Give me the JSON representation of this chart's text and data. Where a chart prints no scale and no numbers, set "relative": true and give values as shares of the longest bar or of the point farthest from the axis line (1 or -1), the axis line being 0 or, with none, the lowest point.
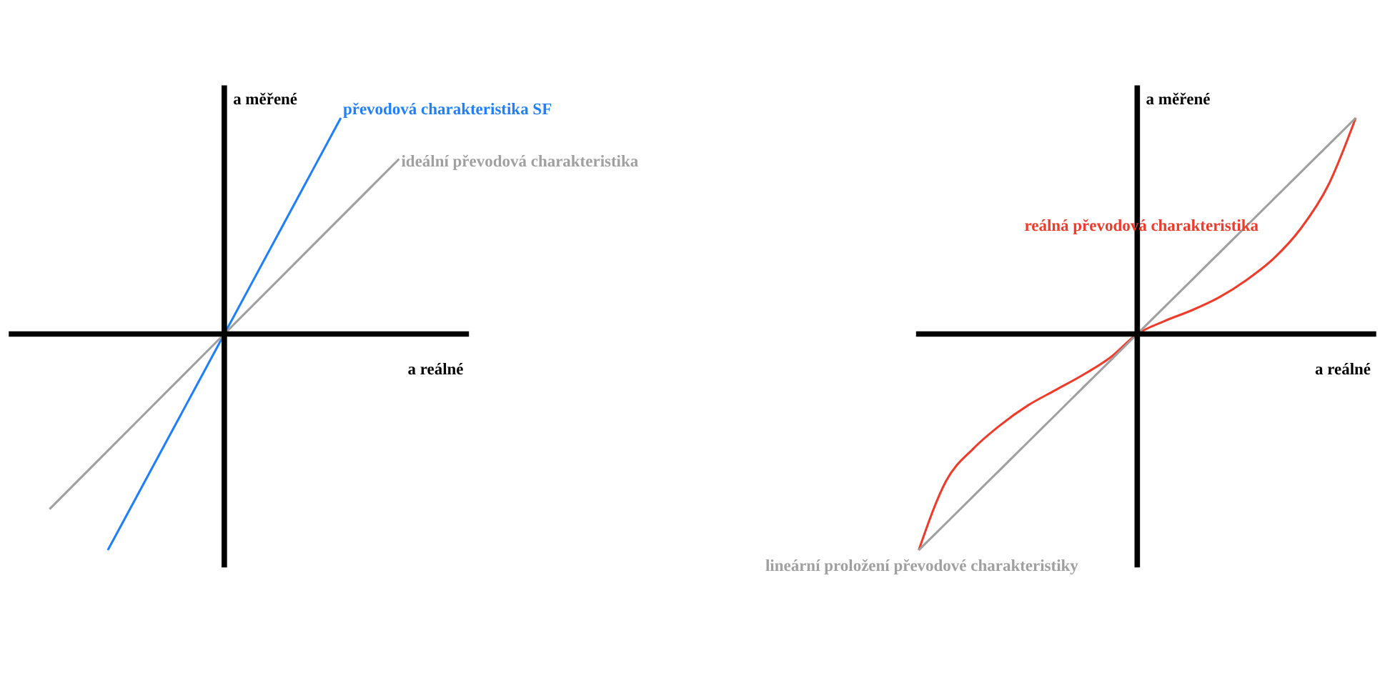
{
  "chart_data": [
    {
      "type": "line",
      "relative": true,
      "xlabel": "a reálné",
      "ylabel": "a měřené",
      "categories": [
        null,
        null,
        null,
        null,
        null,
        null,
        null
      ],
      "line_style": "solid",
      "series": [
        {
          "name": "převodová charakteristika SF",
          "color": "#1f7fff",
          "values": [
            null,
            -1.0,
            -0.5,
            0,
            0.5,
            1.0,
            null
          ]
        },
        {
          "name": "ideální převodová charakteristika",
          "color": "#a0a0a0",
          "values": [
            -0.81,
            -0.54,
            -0.27,
            0,
            0.27,
            0.54,
            0.81
          ]
        }
      ]
    },
    {
      "type": "line",
      "relative": true,
      "xlabel": "a reálné",
      "ylabel": "a měřené",
      "categories": [
        null,
        null,
        null,
        null,
        null,
        null,
        null,
        null,
        null,
        null,
        null,
        null,
        null,
        null,
        null,
        null,
        null
      ],
      "line_style": "solid",
      "series": [
        {
          "name": "reálná převodová charakteristika",
          "color": "#f03a2a",
          "values": [
            -1.0,
            -0.68,
            -0.53,
            -0.42,
            -0.33,
            -0.26,
            -0.19,
            -0.11,
            0,
            0.06,
            0.11,
            0.17,
            0.25,
            0.35,
            0.49,
            0.69,
            1.0
          ]
        },
        {
          "name": "lineární proložení převodové charakteristiky",
          "color": "#a0a0a0",
          "values": [
            -1.0,
            -0.875,
            -0.75,
            -0.625,
            -0.5,
            -0.375,
            -0.25,
            -0.125,
            0,
            0.125,
            0.25,
            0.375,
            0.5,
            0.625,
            0.75,
            0.875,
            1.0
          ]
        }
      ]
    }
  ]
}
